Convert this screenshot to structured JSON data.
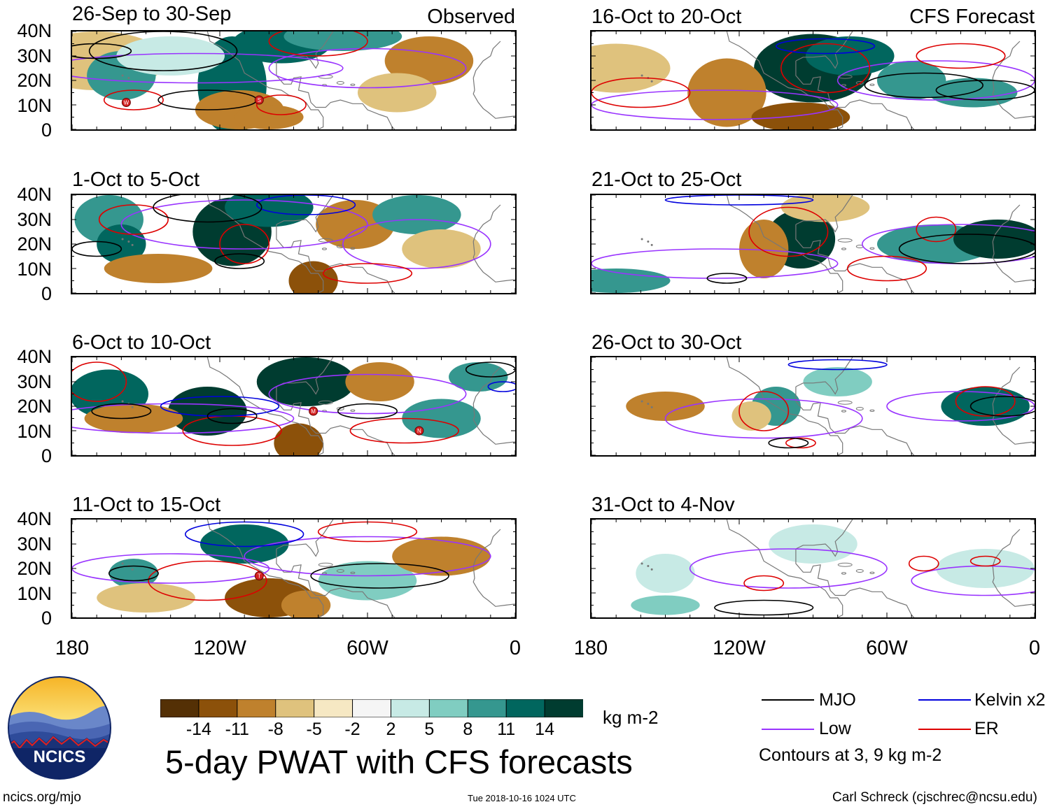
{
  "figure": {
    "title": "5-day PWAT with CFS forecasts",
    "colorbar_unit": "kg m-2",
    "colorbar_labels": [
      "-14",
      "-11",
      "-8",
      "-5",
      "-2",
      "2",
      "5",
      "8",
      "11",
      "14"
    ],
    "colorbar_colors": [
      "#543005",
      "#8c510a",
      "#bf812d",
      "#dfc27d",
      "#f6e8c3",
      "#f5f5f5",
      "#c7eae5",
      "#80cdc1",
      "#35978f",
      "#01665e",
      "#003c30"
    ],
    "contour_note": "Contours at 3, 9 kg m-2",
    "source_url": "ncics.org/mjo",
    "timestamp": "Tue 2018-10-16 1024 UTC",
    "credit": "Carl Schreck (cjschrec@ncsu.edu)",
    "logo_text": "NCICS"
  },
  "axes": {
    "y_ticks": [
      "40N",
      "30N",
      "20N",
      "10N",
      "0"
    ],
    "x_ticks": [
      "180",
      "120W",
      "60W",
      "0"
    ],
    "lat_range": [
      0,
      40
    ],
    "lon_range": [
      -180,
      0
    ]
  },
  "legend": {
    "items": [
      {
        "label": "MJO",
        "color": "#000000"
      },
      {
        "label": "Kelvin x2",
        "color": "#0000dd"
      },
      {
        "label": "Low",
        "color": "#9933ff"
      },
      {
        "label": "ER",
        "color": "#dd0000"
      }
    ]
  },
  "panels": {
    "left_tag": "Observed",
    "right_tag": "CFS Forecast",
    "left": [
      {
        "title": "26-Sep to 30-Sep",
        "storms": [
          "W",
          "S"
        ]
      },
      {
        "title": "1-Oct to 5-Oct",
        "storms": []
      },
      {
        "title": "6-Oct to 10-Oct",
        "storms": [
          "M",
          "N"
        ]
      },
      {
        "title": "11-Oct to 15-Oct",
        "storms": [
          "T"
        ]
      }
    ],
    "right": [
      {
        "title": "16-Oct to 20-Oct"
      },
      {
        "title": "21-Oct to 25-Oct"
      },
      {
        "title": "26-Oct to 30-Oct"
      },
      {
        "title": "31-Oct to 4-Nov"
      }
    ]
  }
}
